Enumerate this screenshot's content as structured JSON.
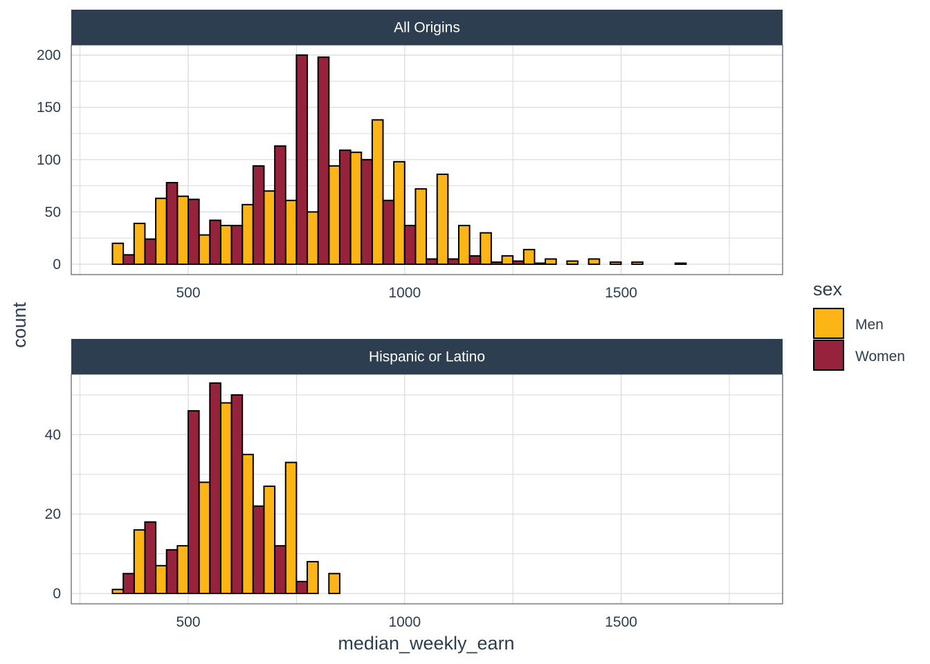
{
  "chart_data": {
    "type": "bar",
    "chart_kind": "faceted dodged histogram",
    "xlabel": "median_weekly_earn",
    "ylabel": "count",
    "x_ticks": [
      500,
      1000,
      1500
    ],
    "xlim": [
      300,
      1800
    ],
    "bin_centers": [
      350,
      400,
      450,
      500,
      550,
      600,
      650,
      700,
      750,
      800,
      850,
      900,
      950,
      1000,
      1050,
      1100,
      1150,
      1200,
      1250,
      1300,
      1350,
      1400,
      1450,
      1500,
      1550,
      1600,
      1650,
      1700,
      1750
    ],
    "bin_width": 50,
    "legend": {
      "title": "sex",
      "placement": "right",
      "entries": [
        {
          "name": "Men",
          "color": "#FDB515"
        },
        {
          "name": "Women",
          "color": "#96223C"
        }
      ]
    },
    "grid": true,
    "facets": [
      {
        "label": "All Origins",
        "ylim": [
          0,
          210
        ],
        "y_ticks": [
          0,
          50,
          100,
          150,
          200
        ],
        "series": [
          {
            "name": "Men",
            "values": [
              20,
              39,
              63,
              65,
              28,
              37,
              57,
              70,
              61,
              50,
              94,
              107,
              138,
              98,
              72,
              86,
              37,
              30,
              8,
              14,
              5,
              3,
              5,
              2,
              2,
              0,
              1,
              0,
              0
            ]
          },
          {
            "name": "Women",
            "values": [
              9,
              24,
              78,
              62,
              42,
              37,
              94,
              113,
              200,
              198,
              109,
              100,
              61,
              37,
              5,
              5,
              8,
              2,
              3,
              1,
              0,
              0,
              0,
              0,
              0,
              0,
              0,
              0,
              0
            ]
          }
        ]
      },
      {
        "label": "Hispanic or Latino",
        "ylim": [
          0,
          55
        ],
        "y_ticks": [
          0,
          20,
          40
        ],
        "series": [
          {
            "name": "Men",
            "values": [
              1,
              16,
              7,
              12,
              28,
              48,
              35,
              27,
              33,
              8,
              5,
              0,
              0,
              0,
              0,
              0,
              0,
              0,
              0,
              0,
              0,
              0,
              0,
              0,
              0,
              0,
              0,
              0,
              0
            ]
          },
          {
            "name": "Women",
            "values": [
              5,
              18,
              11,
              46,
              53,
              50,
              22,
              12,
              3,
              0,
              0,
              0,
              0,
              0,
              0,
              0,
              0,
              0,
              0,
              0,
              0,
              0,
              0,
              0,
              0,
              0,
              0,
              0,
              0
            ]
          }
        ]
      }
    ]
  },
  "style": {
    "strip_fill": "#2C3E50",
    "grid_color": "#D9D9D9",
    "panel_border": "#2C3E50",
    "text_color": "#2C3E50"
  }
}
